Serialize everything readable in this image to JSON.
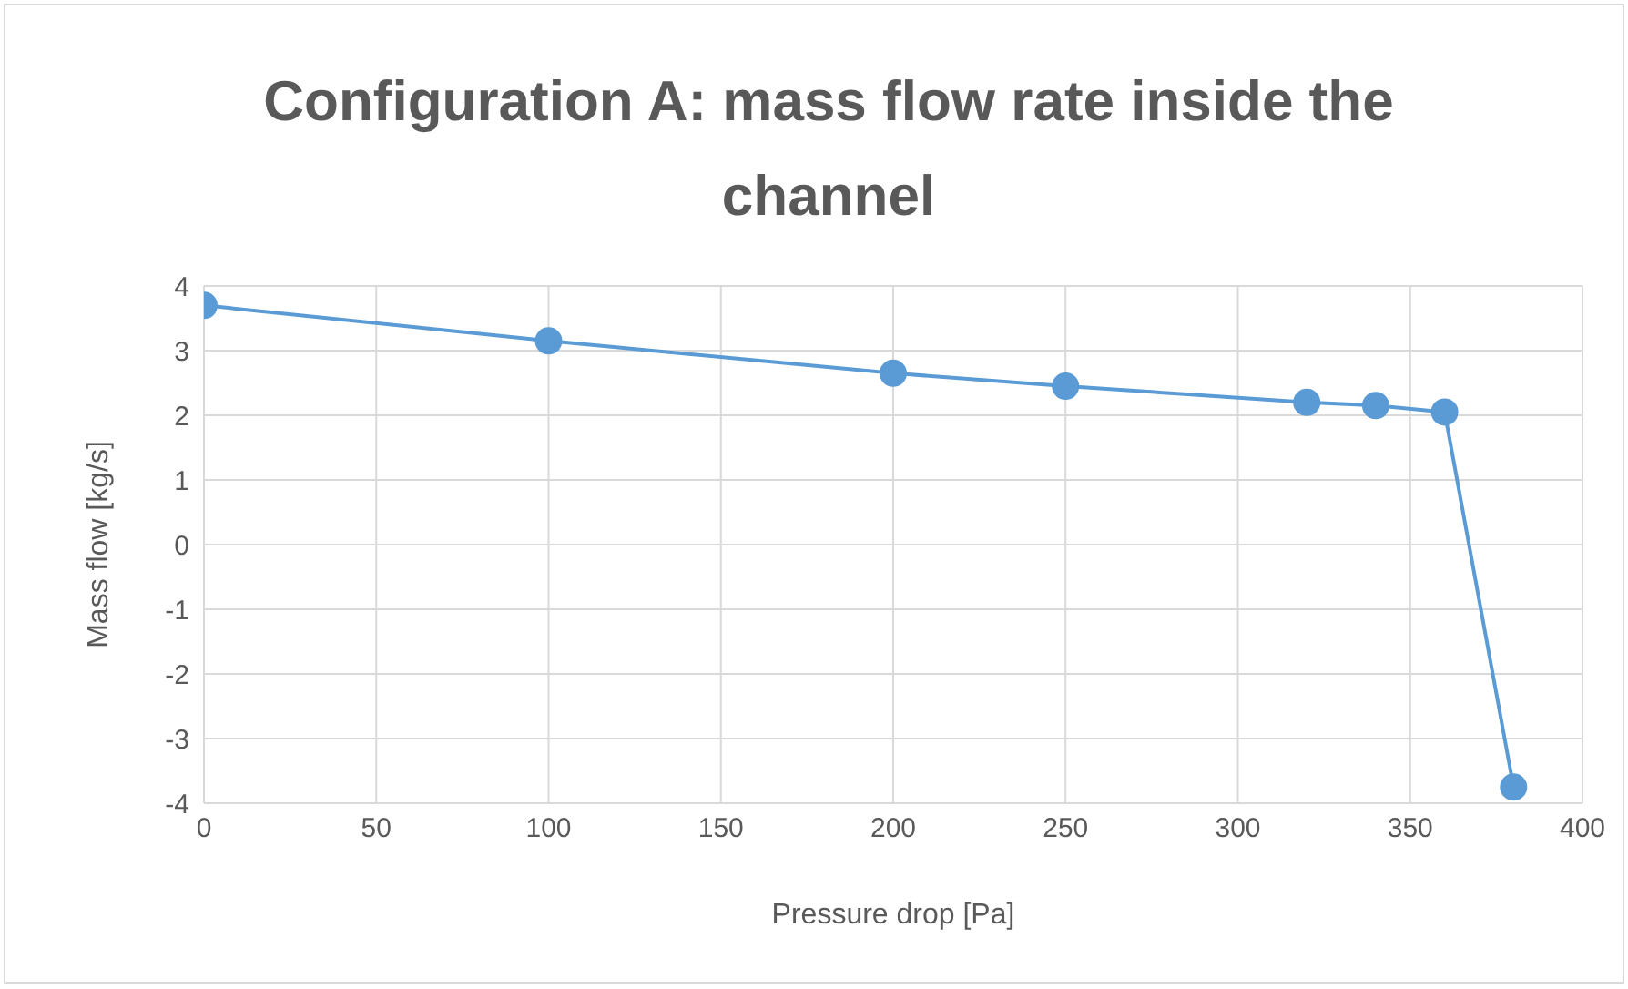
{
  "chart_data": {
    "type": "line",
    "title": "Configuration A: mass flow rate inside the channel",
    "xlabel": "Pressure drop [Pa]",
    "ylabel": "Mass flow [kg/s]",
    "x": [
      0,
      100,
      200,
      250,
      320,
      340,
      360,
      380
    ],
    "series": [
      {
        "color": "#5b9bd5",
        "values": [
          3.7,
          3.15,
          2.65,
          2.45,
          2.2,
          2.15,
          2.05,
          -3.75
        ]
      }
    ],
    "xlim": [
      0,
      400
    ],
    "xticks": [
      0,
      50,
      100,
      150,
      200,
      250,
      300,
      350,
      400
    ],
    "ylim": [
      -4,
      4
    ],
    "yticks": [
      -4,
      -3,
      -2,
      -1,
      0,
      1,
      2,
      3,
      4
    ],
    "grid": true,
    "marker": "circle",
    "line_style": "solid"
  }
}
